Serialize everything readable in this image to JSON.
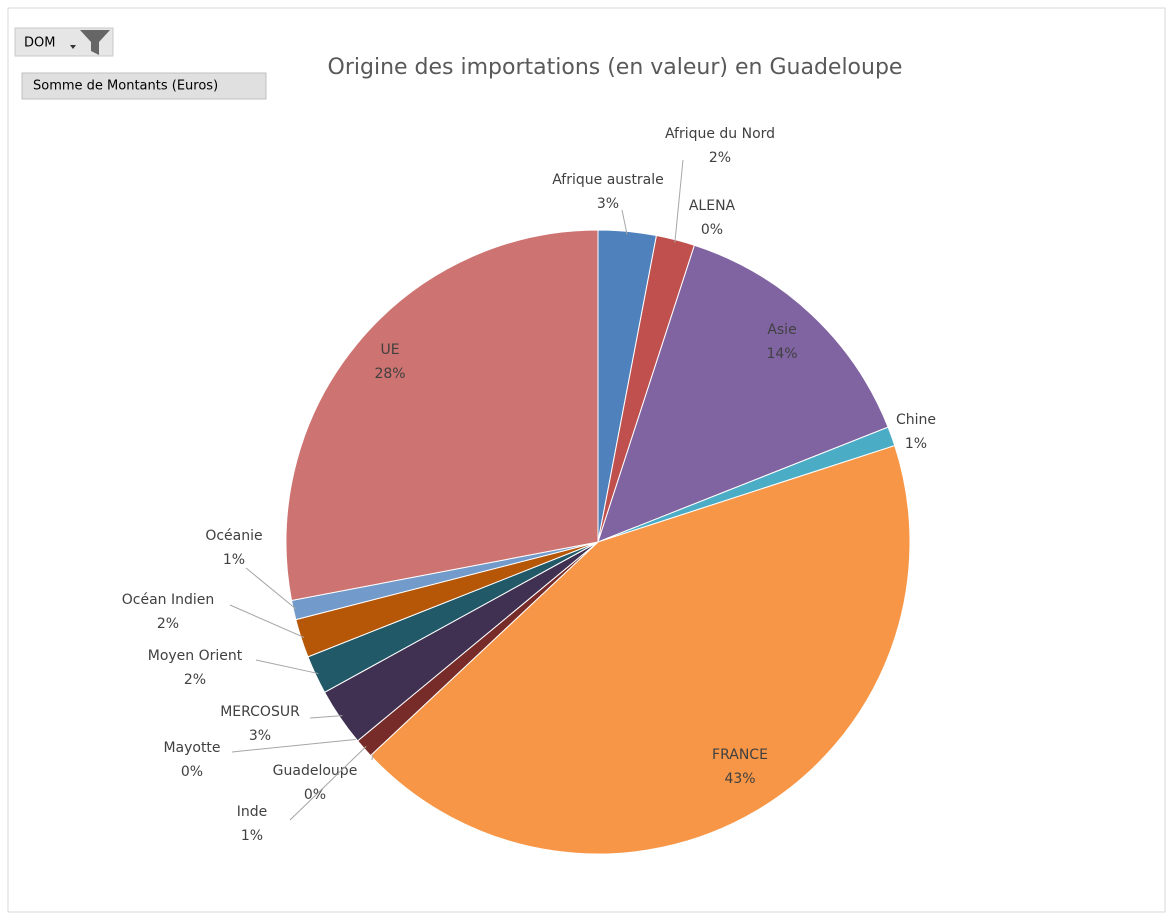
{
  "field_buttons": {
    "filter": "DOM",
    "values": "Somme de Montants (Euros)"
  },
  "chart_data": {
    "type": "pie",
    "title": "Origine des importations (en valeur) en Guadeloupe",
    "categories": [
      "Afrique australe",
      "Afrique du Nord",
      "ALENA",
      "Asie",
      "Chine",
      "FRANCE",
      "Guadeloupe",
      "Inde",
      "Mayotte",
      "MERCOSUR",
      "Moyen Orient",
      "Océan Indien",
      "Océanie",
      "UE"
    ],
    "values": [
      3,
      2,
      0,
      14,
      1,
      43,
      0,
      1,
      0,
      3,
      2,
      2,
      1,
      28
    ],
    "value_labels": [
      "3%",
      "2%",
      "0%",
      "14%",
      "1%",
      "43%",
      "0%",
      "1%",
      "0%",
      "3%",
      "2%",
      "2%",
      "1%",
      "28%"
    ],
    "colors": [
      "#4f81bd",
      "#c0504d",
      "#9bbb59",
      "#8064a2",
      "#4bacc6",
      "#f79646",
      "#2c4d75",
      "#772c2a",
      "#5f7530",
      "#403152",
      "#215968",
      "#b65708",
      "#729aca",
      "#cd7371"
    ]
  }
}
